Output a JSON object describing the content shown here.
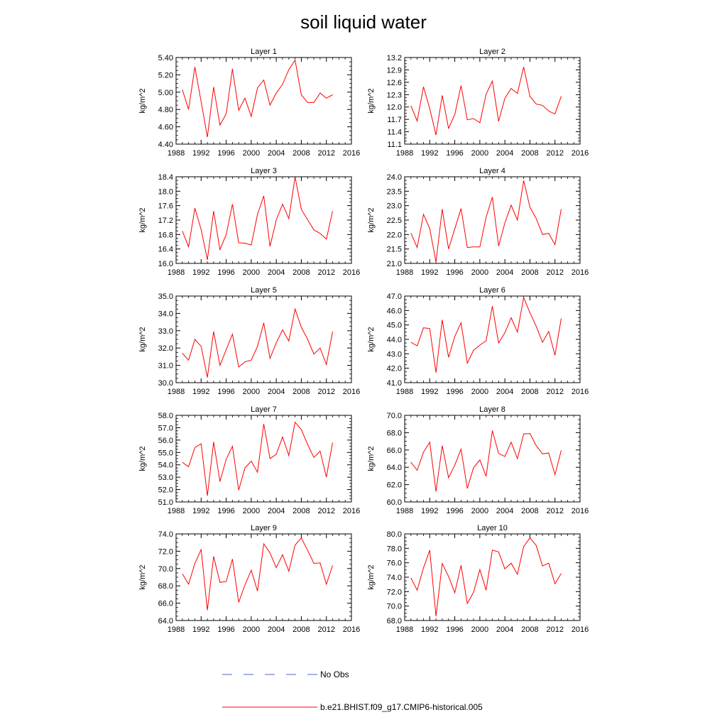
{
  "page_title": "soil liquid water",
  "chart_data": {
    "type": "line",
    "title": "soil liquid water",
    "ylabel": "kg/m^2",
    "xlim": [
      1988,
      2016
    ],
    "xticks": [
      1988,
      1992,
      1996,
      2000,
      2004,
      2008,
      2012,
      2016
    ],
    "x": [
      1989,
      1990,
      1991,
      1992,
      1993,
      1994,
      1995,
      1996,
      1997,
      1998,
      1999,
      2000,
      2001,
      2002,
      2003,
      2004,
      2005,
      2006,
      2007,
      2008,
      2009,
      2010,
      2011,
      2012,
      2013
    ],
    "series_name": "b.e21.BHIST.f09_g17.CMIP6-historical.005",
    "series_color": "#ff0000",
    "panels": [
      {
        "title": "Layer 1",
        "ylim": [
          4.4,
          5.4
        ],
        "yticks": [
          "4.40",
          "4.60",
          "4.80",
          "5.00",
          "5.20",
          "5.40"
        ],
        "values": [
          5.03,
          4.8,
          5.29,
          4.89,
          4.48,
          5.06,
          4.62,
          4.75,
          5.27,
          4.79,
          4.93,
          4.72,
          5.05,
          5.14,
          4.85,
          4.99,
          5.09,
          5.26,
          5.37,
          4.97,
          4.88,
          4.88,
          4.99,
          4.93,
          4.97
        ]
      },
      {
        "title": "Layer 2",
        "ylim": [
          11.1,
          13.2
        ],
        "yticks": [
          "11.1",
          "11.4",
          "11.7",
          "12.0",
          "12.3",
          "12.6",
          "12.9",
          "13.2"
        ],
        "values": [
          12.03,
          11.66,
          12.49,
          11.96,
          11.32,
          12.28,
          11.48,
          11.82,
          12.52,
          11.69,
          11.72,
          11.62,
          12.31,
          12.63,
          11.65,
          12.21,
          12.45,
          12.33,
          12.97,
          12.26,
          12.07,
          12.04,
          11.9,
          11.83,
          12.26
        ]
      },
      {
        "title": "Layer 3",
        "ylim": [
          16.0,
          18.4
        ],
        "yticks": [
          "16.0",
          "16.4",
          "16.8",
          "17.2",
          "17.6",
          "18.0",
          "18.4"
        ],
        "values": [
          16.9,
          16.46,
          17.53,
          16.94,
          16.1,
          17.45,
          16.38,
          16.8,
          17.64,
          16.57,
          16.56,
          16.51,
          17.36,
          17.87,
          16.47,
          17.2,
          17.64,
          17.24,
          18.4,
          17.5,
          17.21,
          16.93,
          16.83,
          16.67,
          17.45
        ]
      },
      {
        "title": "Layer 4",
        "ylim": [
          21.0,
          24.0
        ],
        "yticks": [
          "21.0",
          "21.5",
          "22.0",
          "22.5",
          "23.0",
          "23.5",
          "24.0"
        ],
        "values": [
          22.05,
          21.55,
          22.7,
          22.2,
          21.05,
          22.88,
          21.5,
          22.2,
          22.9,
          21.55,
          21.57,
          21.57,
          22.6,
          23.3,
          21.6,
          22.4,
          23.02,
          22.5,
          23.87,
          22.95,
          22.55,
          22.0,
          22.04,
          21.65,
          22.88
        ]
      },
      {
        "title": "Layer 5",
        "ylim": [
          30.0,
          35.0
        ],
        "yticks": [
          "30.0",
          "31.0",
          "32.0",
          "33.0",
          "34.0",
          "35.0"
        ],
        "values": [
          31.7,
          31.3,
          32.5,
          32.1,
          30.3,
          32.95,
          31.0,
          31.9,
          32.8,
          30.9,
          31.2,
          31.3,
          32.1,
          33.45,
          31.4,
          32.3,
          33.05,
          32.4,
          34.25,
          33.2,
          32.5,
          31.65,
          32.0,
          31.05,
          32.95
        ]
      },
      {
        "title": "Layer 6",
        "ylim": [
          41.0,
          47.0
        ],
        "yticks": [
          "41.0",
          "42.0",
          "43.0",
          "44.0",
          "45.0",
          "46.0",
          "47.0"
        ],
        "values": [
          43.8,
          43.55,
          44.8,
          44.75,
          41.7,
          45.35,
          42.75,
          44.2,
          45.15,
          42.35,
          43.25,
          43.6,
          43.9,
          46.3,
          43.75,
          44.45,
          45.5,
          44.5,
          46.9,
          45.85,
          44.9,
          43.8,
          44.55,
          42.9,
          45.45
        ]
      },
      {
        "title": "Layer 7",
        "ylim": [
          51.0,
          58.0
        ],
        "yticks": [
          "51.0",
          "52.0",
          "53.0",
          "54.0",
          "55.0",
          "56.0",
          "57.0",
          "58.0"
        ],
        "values": [
          54.2,
          53.85,
          55.4,
          55.7,
          51.5,
          55.85,
          52.65,
          54.45,
          55.5,
          51.95,
          53.75,
          54.3,
          53.4,
          57.3,
          54.5,
          54.85,
          56.25,
          54.75,
          57.45,
          56.85,
          55.65,
          54.6,
          55.1,
          53.0,
          55.8
        ]
      },
      {
        "title": "Layer 8",
        "ylim": [
          60.0,
          70.0
        ],
        "yticks": [
          "60.0",
          "62.0",
          "64.0",
          "66.0",
          "68.0",
          "70.0"
        ],
        "values": [
          64.6,
          63.65,
          65.75,
          66.9,
          61.2,
          66.5,
          62.8,
          64.25,
          66.1,
          61.55,
          63.95,
          64.85,
          62.95,
          68.25,
          65.6,
          65.25,
          66.9,
          65.0,
          67.85,
          67.9,
          66.5,
          65.55,
          65.65,
          63.15,
          65.95
        ]
      },
      {
        "title": "Layer 9",
        "ylim": [
          64.0,
          74.0
        ],
        "yticks": [
          "64.0",
          "66.0",
          "68.0",
          "70.0",
          "72.0",
          "74.0"
        ],
        "values": [
          69.4,
          68.2,
          70.6,
          72.2,
          65.2,
          71.4,
          68.4,
          68.5,
          71.1,
          66.1,
          68.1,
          69.8,
          67.4,
          72.85,
          71.8,
          70.1,
          71.6,
          69.7,
          72.7,
          73.55,
          72.1,
          70.6,
          70.65,
          68.2,
          70.35
        ]
      },
      {
        "title": "Layer 10",
        "ylim": [
          68.0,
          80.0
        ],
        "yticks": [
          "68.0",
          "70.0",
          "72.0",
          "74.0",
          "76.0",
          "78.0",
          "80.0"
        ],
        "values": [
          73.9,
          72.2,
          75.3,
          77.75,
          68.6,
          75.9,
          74.1,
          71.85,
          75.65,
          70.35,
          71.9,
          75.05,
          72.2,
          77.75,
          77.5,
          75.15,
          75.95,
          74.4,
          78.25,
          79.45,
          78.4,
          75.55,
          75.95,
          73.1,
          74.5
        ]
      }
    ],
    "legend": [
      {
        "label": "No Obs",
        "color": "#5060d0",
        "style": "dashed"
      },
      {
        "label": "b.e21.BHIST.f09_g17.CMIP6-historical.005",
        "color": "#ff0000",
        "style": "solid"
      }
    ]
  }
}
